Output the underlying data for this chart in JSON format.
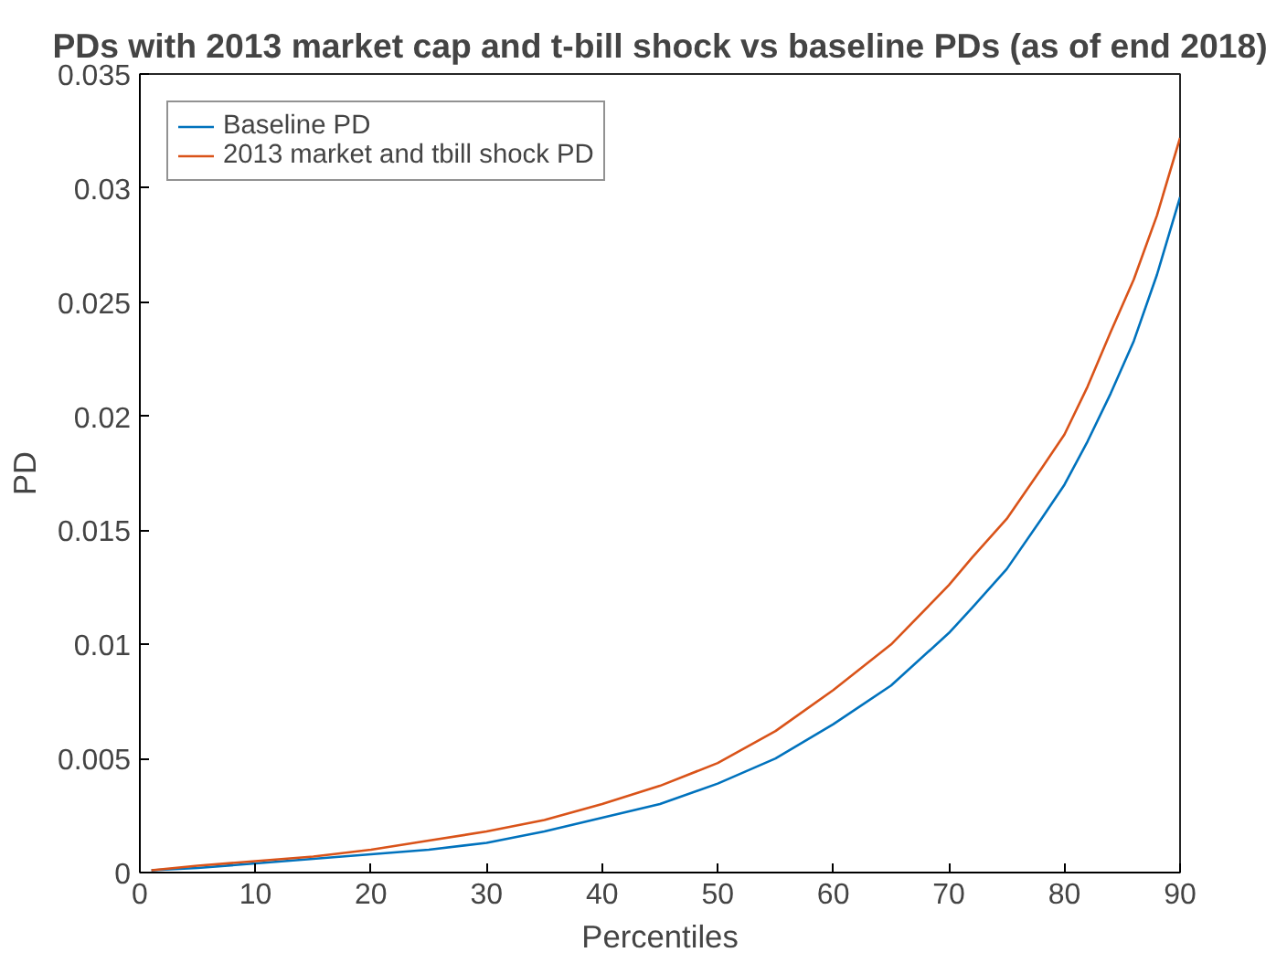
{
  "chart_data": {
    "type": "line",
    "title": "PDs with 2013 market cap and t-bill shock vs baseline PDs (as of end 2018)",
    "xlabel": "Percentiles",
    "ylabel": "PD",
    "x": [
      1,
      5,
      10,
      15,
      20,
      25,
      30,
      35,
      40,
      45,
      50,
      55,
      60,
      65,
      70,
      72,
      75,
      78,
      80,
      82,
      84,
      86,
      88,
      90
    ],
    "series": [
      {
        "name": "Baseline PD",
        "color": "#0072bd",
        "values": [
          0.0001,
          0.0002,
          0.0004,
          0.0006,
          0.0008,
          0.001,
          0.0013,
          0.0018,
          0.0024,
          0.003,
          0.0039,
          0.005,
          0.0065,
          0.0082,
          0.0105,
          0.0116,
          0.0133,
          0.0155,
          0.017,
          0.0189,
          0.021,
          0.0233,
          0.0262,
          0.0296
        ]
      },
      {
        "name": "2013 market and tbill shock PD",
        "color": "#d95319",
        "values": [
          0.0001,
          0.0003,
          0.0005,
          0.0007,
          0.001,
          0.0014,
          0.0018,
          0.0023,
          0.003,
          0.0038,
          0.0048,
          0.0062,
          0.008,
          0.01,
          0.0126,
          0.0138,
          0.0155,
          0.0177,
          0.0192,
          0.0213,
          0.0237,
          0.026,
          0.0288,
          0.0322
        ]
      }
    ],
    "xlim": [
      0,
      90
    ],
    "ylim": [
      0,
      0.035
    ],
    "xticks": [
      0,
      10,
      20,
      30,
      40,
      50,
      60,
      70,
      80,
      90
    ],
    "yticks": [
      0,
      0.005,
      0.01,
      0.015,
      0.02,
      0.025,
      0.03,
      0.035
    ],
    "grid": false,
    "legend": "top left",
    "line_style": "solid",
    "marker": "none"
  }
}
